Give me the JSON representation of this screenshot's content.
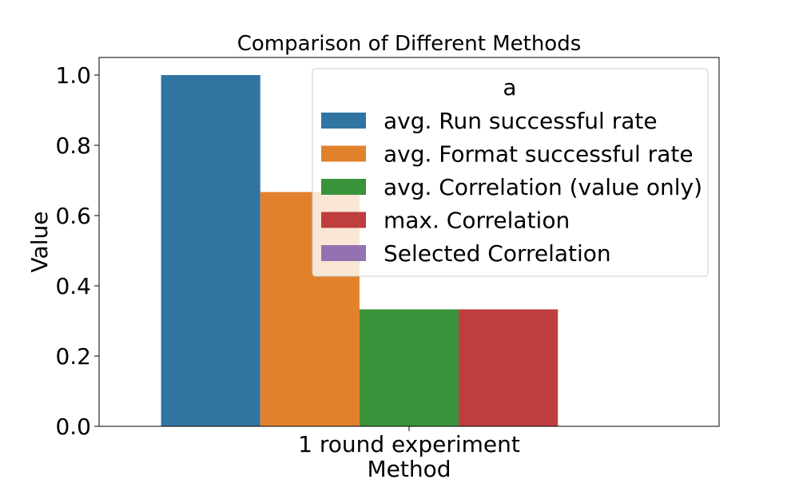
{
  "chart_data": {
    "type": "bar",
    "title": "Comparison of Different Methods",
    "xlabel": "Method",
    "ylabel": "Value",
    "categories": [
      "1 round experiment"
    ],
    "ylim": [
      0,
      1.05
    ],
    "yticks": [
      "0.0",
      "0.2",
      "0.4",
      "0.6",
      "0.8",
      "1.0"
    ],
    "legend": {
      "title": "a",
      "placement": "top-right"
    },
    "series": [
      {
        "name": "avg. Run successful rate",
        "color": "#3274a1",
        "values": [
          1.0
        ]
      },
      {
        "name": "avg. Format successful rate",
        "color": "#e1812c",
        "values": [
          0.667
        ]
      },
      {
        "name": "avg. Correlation (value only)",
        "color": "#3a923a",
        "values": [
          0.333
        ]
      },
      {
        "name": "max. Correlation",
        "color": "#c03d3e",
        "values": [
          0.333
        ]
      },
      {
        "name": "Selected Correlation",
        "color": "#9372b2",
        "values": [
          0.0
        ]
      }
    ]
  }
}
